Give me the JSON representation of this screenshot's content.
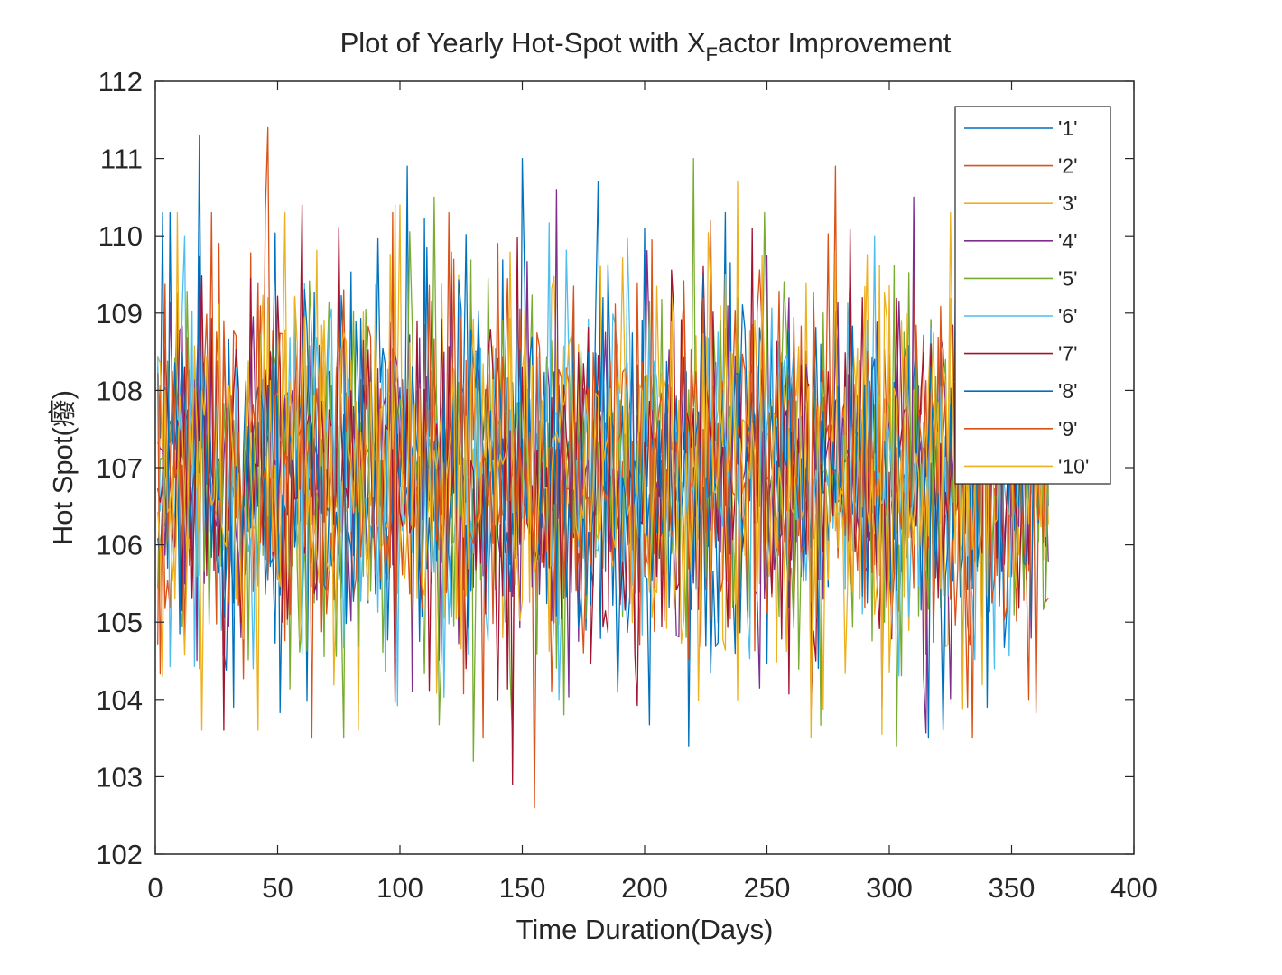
{
  "chart_data": {
    "type": "line",
    "title": "Plot of Yearly Hot-Spot with X",
    "title_subscript": "F",
    "title_suffix": "actor Improvement",
    "xlabel": "Time Duration(Days)",
    "ylabel": "Hot Spot(",
    "ylabel_unit": "癈",
    "ylabel_close": ")",
    "xlim": [
      0,
      400
    ],
    "ylim": [
      102,
      112
    ],
    "xticks": [
      "0",
      "50",
      "100",
      "150",
      "200",
      "250",
      "300",
      "350",
      "400"
    ],
    "yticks": [
      "102",
      "103",
      "104",
      "105",
      "106",
      "107",
      "108",
      "109",
      "110",
      "111",
      "112"
    ],
    "grid": false,
    "legend_position": "top-right",
    "x_range": [
      1,
      365
    ],
    "series": [
      {
        "name": "'1'",
        "color": "#0072BD",
        "mean": 107.0,
        "spread": 1.2,
        "extremes": [
          [
            18,
            111.3
          ],
          [
            218,
            103.4
          ],
          [
            150,
            111.0
          ],
          [
            103,
            110.9
          ],
          [
            32,
            103.9
          ]
        ]
      },
      {
        "name": "'2'",
        "color": "#D95319",
        "mean": 107.0,
        "spread": 1.2,
        "extremes": [
          [
            46,
            111.4
          ],
          [
            155,
            102.6
          ],
          [
            26,
            109.9
          ],
          [
            134,
            103.5
          ]
        ]
      },
      {
        "name": "'3'",
        "color": "#EDB120",
        "mean": 107.0,
        "spread": 1.2,
        "extremes": [
          [
            19,
            103.6
          ],
          [
            83,
            103.6
          ],
          [
            98,
            110.4
          ],
          [
            238,
            110.7
          ],
          [
            268,
            103.9
          ]
        ]
      },
      {
        "name": "'4'",
        "color": "#7E2F8E",
        "mean": 107.0,
        "spread": 1.2,
        "extremes": [
          [
            164,
            110.6
          ],
          [
            310,
            110.5
          ],
          [
            105,
            104.1
          ],
          [
            297,
            103.9
          ]
        ]
      },
      {
        "name": "'5'",
        "color": "#77AC30",
        "mean": 107.0,
        "spread": 1.2,
        "extremes": [
          [
            220,
            111.0
          ],
          [
            130,
            103.2
          ],
          [
            303,
            103.4
          ],
          [
            114,
            110.5
          ]
        ]
      },
      {
        "name": "'6'",
        "color": "#4DBEEE",
        "mean": 107.0,
        "spread": 1.2,
        "extremes": [
          [
            12,
            110.0
          ],
          [
            165,
            104.0
          ],
          [
            294,
            110.0
          ]
        ]
      },
      {
        "name": "'7'",
        "color": "#A2142F",
        "mean": 107.0,
        "spread": 1.2,
        "extremes": [
          [
            146,
            102.9
          ],
          [
            28,
            103.6
          ],
          [
            60,
            110.4
          ],
          [
            244,
            110.1
          ]
        ]
      },
      {
        "name": "'8'",
        "color": "#0072BD",
        "mean": 107.0,
        "spread": 1.2,
        "extremes": [
          [
            181,
            110.7
          ],
          [
            200,
            110.1
          ],
          [
            322,
            103.6
          ],
          [
            340,
            103.9
          ]
        ]
      },
      {
        "name": "'9'",
        "color": "#D95319",
        "mean": 107.0,
        "spread": 1.2,
        "extremes": [
          [
            278,
            110.9
          ],
          [
            140,
            109.9
          ],
          [
            332,
            103.9
          ],
          [
            357,
            104.0
          ]
        ]
      },
      {
        "name": "'10'",
        "color": "#EDB120",
        "mean": 107.0,
        "spread": 1.2,
        "extremes": [
          [
            3,
            104.3
          ],
          [
            42,
            103.6
          ],
          [
            100,
            110.4
          ],
          [
            53,
            110.3
          ]
        ]
      }
    ]
  }
}
